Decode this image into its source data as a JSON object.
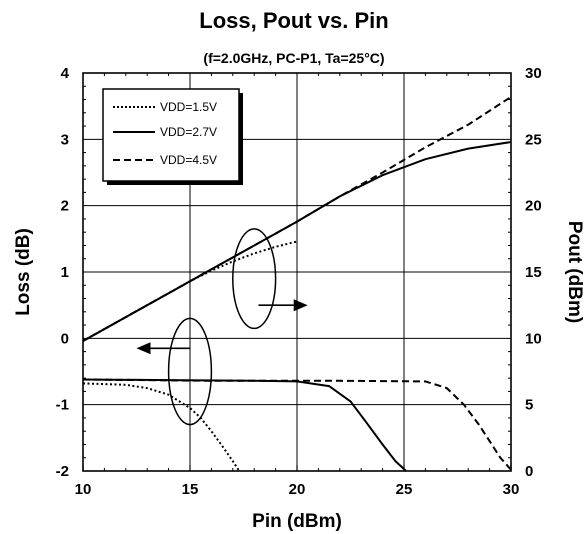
{
  "chart_data": {
    "type": "line",
    "title": "Loss, Pout vs. Pin",
    "subtitle": "(f=2.0GHz, PC-P1, Ta=25°C)",
    "xlabel": "Pin (dBm)",
    "ylabel_left": "Loss (dB)",
    "ylabel_right": "Pout (dBm)",
    "xlim": [
      10,
      30
    ],
    "ylim_left": [
      -2,
      4
    ],
    "ylim_right": [
      0,
      30
    ],
    "x_ticks": [
      "10",
      "15",
      "20",
      "25",
      "30"
    ],
    "y_left_ticks": [
      "-2",
      "-1",
      "0",
      "1",
      "2",
      "3",
      "4"
    ],
    "y_right_ticks": [
      "0",
      "5",
      "10",
      "15",
      "20",
      "25",
      "30"
    ],
    "grid": true,
    "legend_position": "top-left",
    "legend": [
      {
        "label": "VDD=1.5V",
        "style": "dotted"
      },
      {
        "label": "VDD=2.7V",
        "style": "solid"
      },
      {
        "label": "VDD=4.5V",
        "style": "dashed"
      }
    ],
    "series": [
      {
        "name": "VDD=1.5V",
        "axis": "right",
        "style": "dotted",
        "x": [
          10,
          12,
          14,
          15,
          16,
          17,
          18,
          19,
          20
        ],
        "y": [
          9.8,
          11.6,
          13.4,
          14.3,
          15.1,
          15.8,
          16.4,
          16.9,
          17.3
        ]
      },
      {
        "name": "VDD=2.7V",
        "axis": "right",
        "style": "solid",
        "x": [
          10,
          12,
          14,
          16,
          18,
          20,
          22,
          24,
          26,
          28,
          30
        ],
        "y": [
          9.8,
          11.6,
          13.4,
          15.2,
          17.0,
          18.8,
          20.7,
          22.3,
          23.5,
          24.3,
          24.8
        ]
      },
      {
        "name": "VDD=4.5V",
        "axis": "right",
        "style": "dashed",
        "x": [
          10,
          14,
          18,
          20,
          22,
          24,
          26,
          28,
          30
        ],
        "y": [
          9.8,
          13.4,
          17.0,
          18.8,
          20.7,
          22.5,
          24.4,
          26.1,
          28.2
        ]
      },
      {
        "name": "VDD=1.5V",
        "axis": "left",
        "style": "dotted",
        "x": [
          10,
          12,
          13,
          14,
          15,
          15.5,
          16,
          16.5,
          17,
          17.3
        ],
        "y": [
          -0.68,
          -0.7,
          -0.75,
          -0.85,
          -1.05,
          -1.2,
          -1.4,
          -1.62,
          -1.85,
          -2.0
        ]
      },
      {
        "name": "VDD=2.7V",
        "axis": "left",
        "style": "solid",
        "x": [
          10,
          14,
          18,
          20,
          21.5,
          22.5,
          23.2,
          24,
          24.6,
          25.1
        ],
        "y": [
          -0.62,
          -0.63,
          -0.64,
          -0.65,
          -0.72,
          -0.95,
          -1.25,
          -1.6,
          -1.85,
          -2.0
        ]
      },
      {
        "name": "VDD=4.5V",
        "axis": "left",
        "style": "dashed",
        "x": [
          10,
          16,
          22,
          26,
          27,
          27.8,
          28.5,
          29,
          29.5,
          30
        ],
        "y": [
          -0.62,
          -0.64,
          -0.64,
          -0.65,
          -0.75,
          -1.0,
          -1.3,
          -1.55,
          -1.8,
          -1.98
        ]
      }
    ],
    "annotations": [
      {
        "type": "ellipse",
        "target": "Loss curves",
        "cx": 15,
        "cy_left": -0.5,
        "rx_data": 1.0,
        "ry_left": 0.8
      },
      {
        "type": "arrow",
        "points_to": "left axis",
        "from": [
          15.0,
          -0.15
        ],
        "to": [
          12.5,
          -0.15
        ],
        "axis": "left"
      },
      {
        "type": "ellipse",
        "target": "Pout curves",
        "cx": 18,
        "cy_left": 0.9,
        "rx_data": 1.0,
        "ry_left": 0.75
      },
      {
        "type": "arrow",
        "points_to": "right axis",
        "from": [
          18.2,
          0.5
        ],
        "to": [
          20.5,
          0.5
        ],
        "axis": "left"
      }
    ]
  }
}
